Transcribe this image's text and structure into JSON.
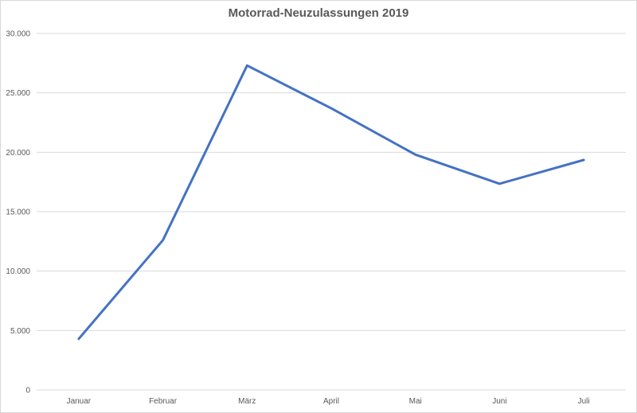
{
  "chart_data": {
    "type": "line",
    "title": "Motorrad-Neuzulassungen 2019",
    "categories": [
      "Januar",
      "Februar",
      "März",
      "April",
      "Mai",
      "Juni",
      "Juli"
    ],
    "series": [
      {
        "values": [
          4300,
          12600,
          27300,
          23700,
          19800,
          17350,
          19350
        ]
      }
    ],
    "ylim": [
      0,
      30000
    ],
    "yticks": [
      0,
      5000,
      10000,
      15000,
      20000,
      25000,
      30000
    ],
    "ytick_labels": [
      "0",
      "5.000",
      "10.000",
      "15.000",
      "20.000",
      "25.000",
      "30.000"
    ],
    "grid": true,
    "legend": "none",
    "line_color": "#4472c4",
    "grid_color": "#d9d9d9"
  }
}
